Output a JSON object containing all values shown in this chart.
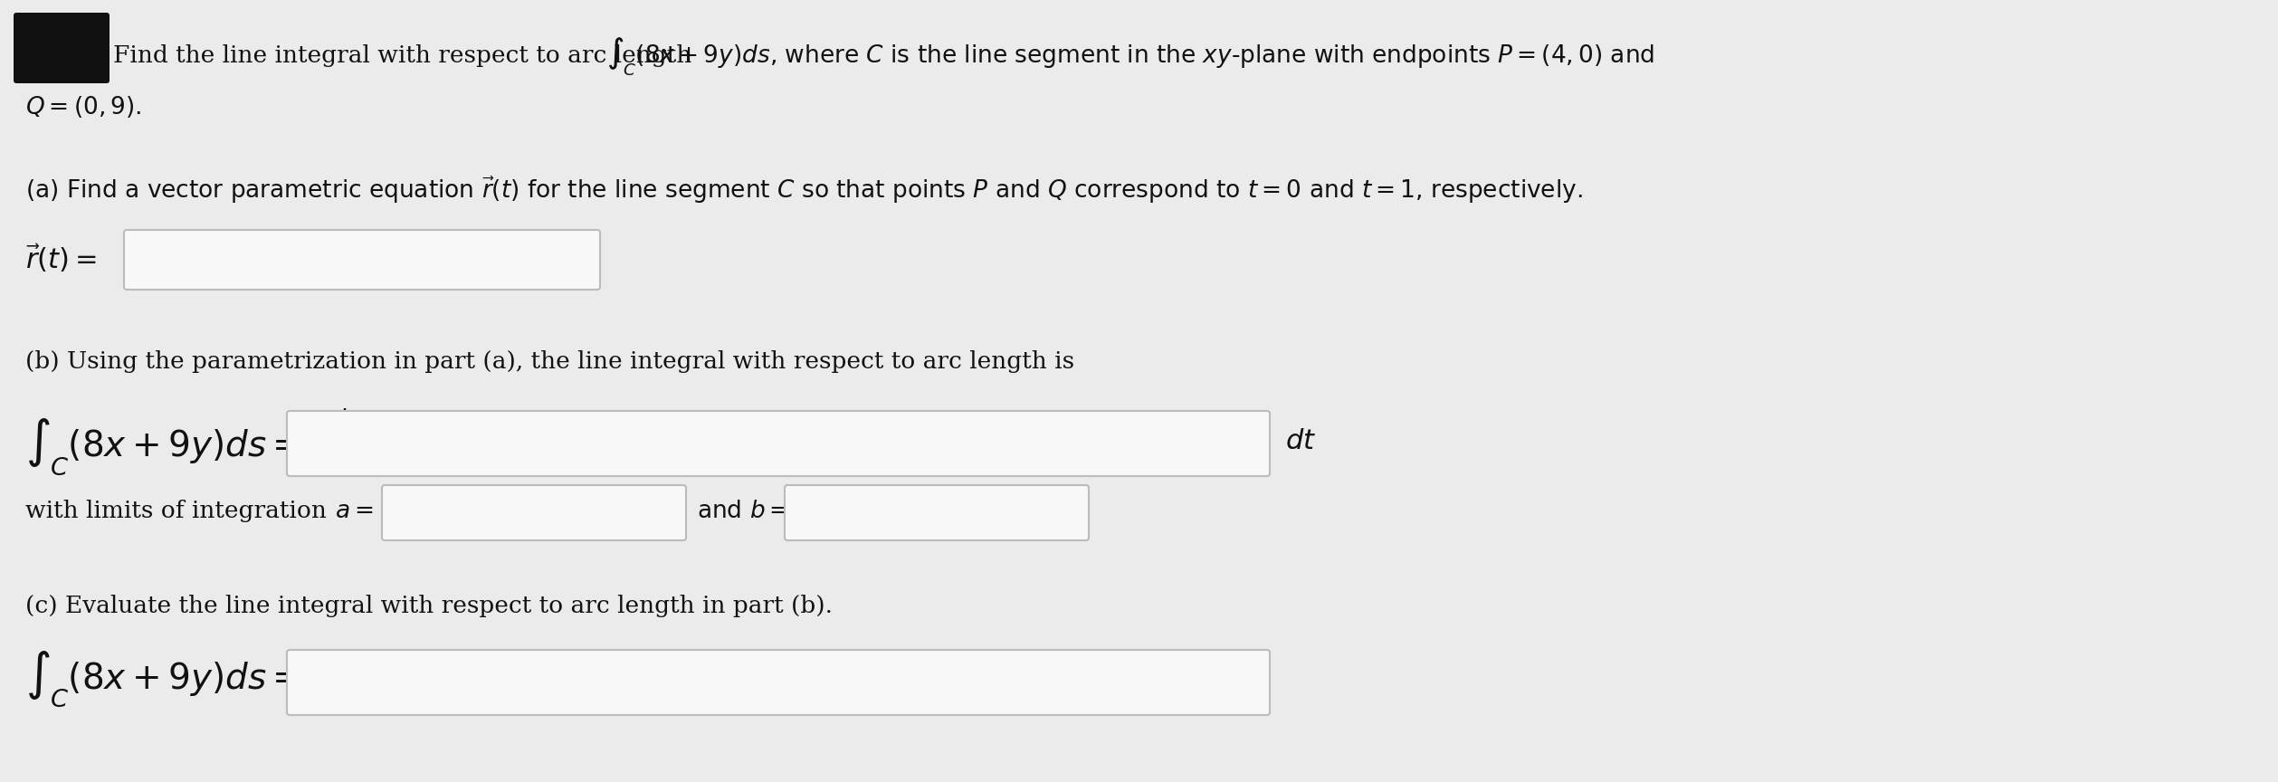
{
  "bg_color": "#ebebeb",
  "text_color": "#111111",
  "box_color": "#f8f8f8",
  "box_edge_color": "#bbbbbb",
  "black_blob_color": "#111111",
  "fontsize_body": 19,
  "fontsize_math": 22,
  "fontsize_large_integral": 28,
  "line1_text": "Find the line integral with respect to arc length",
  "line1_math": "$\\int_C (8x + 9y)ds$, where $C$ is the line segment in the $xy$-plane with endpoints $P = (4, 0)$ and",
  "line2": "$Q = (0, 9).$",
  "part_a_label": "(a) Find a vector parametric equation $\\vec{r}(t)$ for the line segment $C$ so that points $P$ and $Q$ correspond to $t = 0$ and $t = 1$, respectively.",
  "part_a_lhs": "$\\vec{r}(t) =$",
  "part_b_label": "(b) Using the parametrization in part (a), the line integral with respect to arc length is",
  "part_b_lhs_top": "$\\int_C (8x + 9y)ds = \\int_a^b$",
  "part_b_dt": "$dt$",
  "part_b_limits": "with limits of integration $a =$",
  "part_b_andb": "and $b =$",
  "part_c_label": "(c) Evaluate the line integral with respect to arc length in part (b).",
  "part_c_lhs": "$\\int_C (8x + 9y)ds =$"
}
